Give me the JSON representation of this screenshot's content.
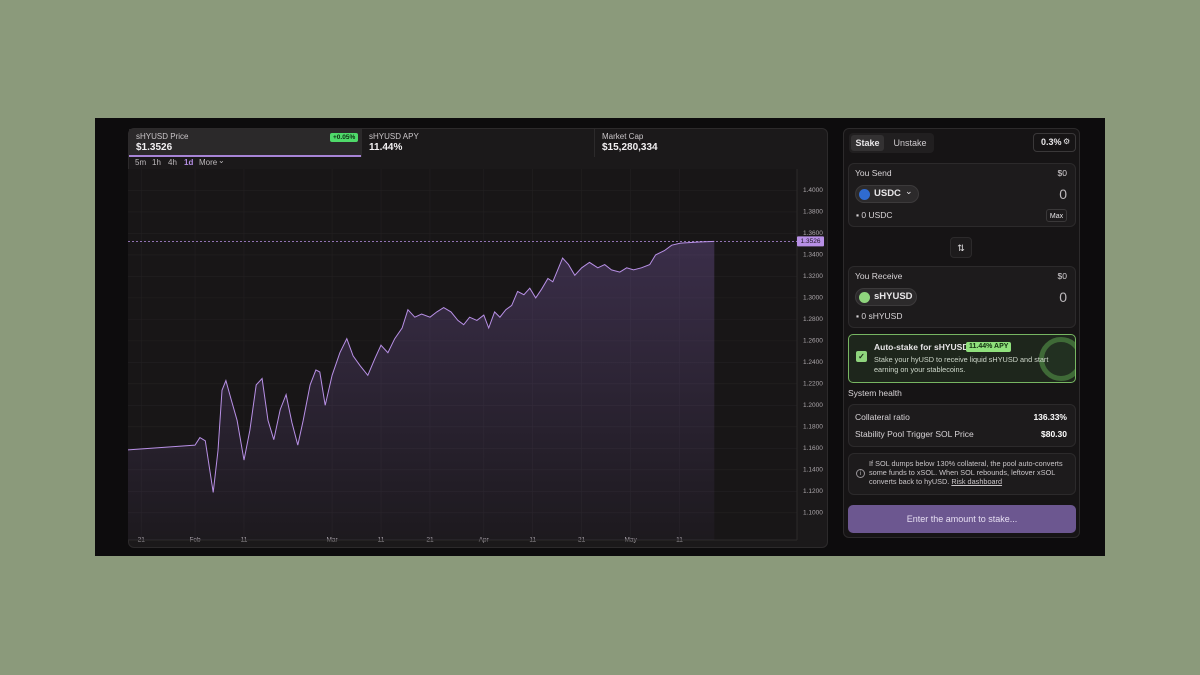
{
  "stats": [
    {
      "label": "sHYUSD Price",
      "value": "$1.3526",
      "change": "+0.05%"
    },
    {
      "label": "sHYUSD APY",
      "value": "11.44%"
    },
    {
      "label": "Market Cap",
      "value": "$15,280,334"
    }
  ],
  "timeframes": [
    "5m",
    "1h",
    "4h",
    "1d",
    "More"
  ],
  "chart": {
    "type": "line",
    "color": "#b890e6",
    "grid": true,
    "x": [
      -2.7,
      11,
      12,
      13.1,
      14.7,
      15.7,
      16.5,
      17.3,
      18.4,
      19.6,
      21,
      22.2,
      23.5,
      24.7,
      25.9,
      27.1,
      28.4,
      29.6,
      30.8,
      32,
      33.1,
      34.5,
      35.7,
      36.5,
      37.6,
      39,
      40.6,
      42,
      43.3,
      44.7,
      46.3,
      47.8,
      49,
      50.4,
      51.8,
      53.3,
      54.5,
      55.9,
      57.3,
      59,
      60.4,
      61.8,
      63.3,
      64.7,
      65.9,
      67.1,
      68.6,
      70,
      71,
      72.2,
      73.3,
      74.5,
      75.7,
      76.9,
      78.2,
      79.4,
      80.6,
      81.8,
      83.1,
      84.1,
      85.1,
      86.1,
      87.3,
      88.6,
      90,
      91.6,
      93.3,
      94.7,
      96.1,
      97.8,
      99.2,
      100.6,
      102.2,
      103.9,
      105.1,
      106.9,
      108.4,
      110.2,
      114,
      117.1
    ],
    "values": [
      1.1585,
      1.163,
      1.17,
      1.167,
      1.119,
      1.158,
      1.214,
      1.223,
      1.205,
      1.186,
      1.149,
      1.177,
      1.219,
      1.225,
      1.186,
      1.168,
      1.196,
      1.21,
      1.184,
      1.163,
      1.186,
      1.219,
      1.233,
      1.231,
      1.2,
      1.228,
      1.249,
      1.262,
      1.246,
      1.237,
      1.228,
      1.244,
      1.256,
      1.249,
      1.262,
      1.272,
      1.289,
      1.282,
      1.285,
      1.282,
      1.287,
      1.291,
      1.287,
      1.279,
      1.275,
      1.282,
      1.279,
      1.284,
      1.272,
      1.287,
      1.282,
      1.289,
      1.293,
      1.306,
      1.303,
      1.309,
      1.3,
      1.308,
      1.318,
      1.315,
      1.326,
      1.337,
      1.331,
      1.321,
      1.328,
      1.333,
      1.328,
      1.331,
      1.326,
      1.324,
      1.328,
      1.326,
      1.328,
      1.331,
      1.34,
      1.344,
      1.349,
      1.351,
      1.352,
      1.3526
    ],
    "xlim": [
      -2.7,
      134
    ],
    "ylim": [
      1.084,
      1.419
    ],
    "xticks": [
      {
        "value": 0,
        "label": "21"
      },
      {
        "value": 11,
        "label": "Feb"
      },
      {
        "value": 21,
        "label": "11"
      },
      {
        "value": 39,
        "label": "Mar"
      },
      {
        "value": 49,
        "label": "11"
      },
      {
        "value": 59,
        "label": "21"
      },
      {
        "value": 70,
        "label": "Apr"
      },
      {
        "value": 80,
        "label": "11"
      },
      {
        "value": 90,
        "label": "21"
      },
      {
        "value": 100,
        "label": "May"
      },
      {
        "value": 110,
        "label": "11"
      }
    ],
    "yticks": [
      {
        "value": 1.1,
        "label": "1.1000"
      },
      {
        "value": 1.12,
        "label": "1.1200"
      },
      {
        "value": 1.14,
        "label": "1.1400"
      },
      {
        "value": 1.16,
        "label": "1.1600"
      },
      {
        "value": 1.18,
        "label": "1.1800"
      },
      {
        "value": 1.2,
        "label": "1.2000"
      },
      {
        "value": 1.22,
        "label": "1.2200"
      },
      {
        "value": 1.24,
        "label": "1.2400"
      },
      {
        "value": 1.26,
        "label": "1.2600"
      },
      {
        "value": 1.28,
        "label": "1.2800"
      },
      {
        "value": 1.3,
        "label": "1.3000"
      },
      {
        "value": 1.32,
        "label": "1.3200"
      },
      {
        "value": 1.34,
        "label": "1.3400"
      },
      {
        "value": 1.36,
        "label": "1.3600"
      },
      {
        "value": 1.38,
        "label": "1.3800"
      },
      {
        "value": 1.4,
        "label": "1.4000"
      }
    ]
  },
  "swap": {
    "tabs": [
      "Stake",
      "Unstake"
    ],
    "slippage": "0.3%",
    "send": {
      "label": "You Send",
      "usd": "$0",
      "token": "USDC",
      "amount": "0",
      "balance": "0 USDC",
      "max": "Max"
    },
    "receive": {
      "label": "You Receive",
      "usd": "$0",
      "token": "sHYUSD",
      "amount": "0",
      "balance": "0 sHYUSD"
    },
    "autostake": {
      "title": "Auto-stake for sHYUSD",
      "badge": "11.44% APY",
      "text": "Stake your hyUSD to receive liquid sHYUSD and start earning on your stablecoins."
    },
    "health": {
      "title": "System health",
      "rows": [
        [
          "Collateral ratio",
          "136.33%"
        ],
        [
          "Stability Pool Trigger SOL Price",
          "$80.30"
        ]
      ]
    },
    "notice": {
      "text": "If SOL dumps below 130% collateral, the pool auto-converts some funds to xSOL. When SOL rebounds, leftover xSOL converts back to hyUSD.",
      "link": "Risk dashboard"
    },
    "button": "Enter the amount to stake..."
  }
}
